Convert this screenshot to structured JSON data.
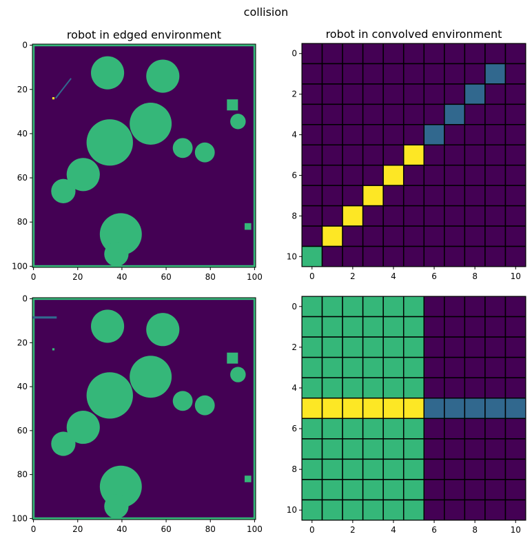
{
  "title": "collision",
  "colors": {
    "background": "#440154",
    "obstacle": "#35b779",
    "robot_path": "#31688e",
    "robot_point": "#fde725",
    "grid_line": "#000000"
  },
  "chart_data": [
    {
      "type": "heatmap",
      "title": "robot in edged environment",
      "xlim": [
        -0.5,
        100.5
      ],
      "ylim": [
        100.5,
        -0.5
      ],
      "xticks": [
        0,
        20,
        40,
        60,
        80,
        100
      ],
      "yticks": [
        0,
        20,
        40,
        60,
        80,
        100
      ],
      "background_value": "#440154",
      "obstacles": {
        "border_value": "#35b779",
        "circles": [
          {
            "cx": 33.5,
            "cy": 12.5,
            "r": 7.5
          },
          {
            "cx": 58.5,
            "cy": 14,
            "r": 7.5
          },
          {
            "cx": 53,
            "cy": 35.5,
            "r": 9.5
          },
          {
            "cx": 34.5,
            "cy": 44,
            "r": 10.5
          },
          {
            "cx": 22.5,
            "cy": 58.5,
            "r": 7.5
          },
          {
            "cx": 13.5,
            "cy": 66,
            "r": 5.5
          },
          {
            "cx": 67.5,
            "cy": 46.5,
            "r": 4.5
          },
          {
            "cx": 77.5,
            "cy": 48.5,
            "r": 4.5
          },
          {
            "cx": 92.5,
            "cy": 34.5,
            "r": 3.5
          },
          {
            "cx": 39.5,
            "cy": 85.5,
            "r": 9.5
          },
          {
            "cx": 37.5,
            "cy": 94.5,
            "r": 5.5
          }
        ],
        "rects": [
          {
            "x0": 88,
            "x1": 92,
            "y0": 25,
            "y1": 29
          },
          {
            "x0": 96,
            "x1": 98,
            "y0": 81,
            "y1": 83
          }
        ]
      },
      "robot": {
        "kind": "diagonal",
        "path": {
          "x0": 10,
          "y0": 24,
          "x1": 17,
          "y1": 15
        },
        "point": {
          "x": 9,
          "y": 24
        }
      }
    },
    {
      "type": "heatmap",
      "title": "robot in convolved environment",
      "xlim": [
        -0.5,
        10.5
      ],
      "ylim": [
        10.5,
        -0.5
      ],
      "xticks": [
        0,
        2,
        4,
        6,
        8,
        10
      ],
      "yticks": [
        0,
        2,
        4,
        6,
        8,
        10
      ],
      "rows": 11,
      "cols": 11,
      "legend_codes": {
        "0": "#440154",
        "1": "#31688e",
        "2": "#35b779",
        "3": "#fde725"
      },
      "z": [
        [
          0,
          0,
          0,
          0,
          0,
          0,
          0,
          0,
          0,
          0,
          0
        ],
        [
          0,
          0,
          0,
          0,
          0,
          0,
          0,
          0,
          0,
          1,
          0
        ],
        [
          0,
          0,
          0,
          0,
          0,
          0,
          0,
          0,
          1,
          0,
          0
        ],
        [
          0,
          0,
          0,
          0,
          0,
          0,
          0,
          1,
          0,
          0,
          0
        ],
        [
          0,
          0,
          0,
          0,
          0,
          0,
          1,
          0,
          0,
          0,
          0
        ],
        [
          0,
          0,
          0,
          0,
          0,
          3,
          0,
          0,
          0,
          0,
          0
        ],
        [
          0,
          0,
          0,
          0,
          3,
          0,
          0,
          0,
          0,
          0,
          0
        ],
        [
          0,
          0,
          0,
          3,
          0,
          0,
          0,
          0,
          0,
          0,
          0
        ],
        [
          0,
          0,
          3,
          0,
          0,
          0,
          0,
          0,
          0,
          0,
          0
        ],
        [
          0,
          3,
          0,
          0,
          0,
          0,
          0,
          0,
          0,
          0,
          0
        ],
        [
          2,
          0,
          0,
          0,
          0,
          0,
          0,
          0,
          0,
          0,
          0
        ]
      ]
    },
    {
      "type": "heatmap",
      "title": "",
      "xlim": [
        -0.5,
        100.5
      ],
      "ylim": [
        100.5,
        -0.5
      ],
      "xticks": [
        0,
        20,
        40,
        60,
        80,
        100
      ],
      "yticks": [
        0,
        20,
        40,
        60,
        80,
        100
      ],
      "background_value": "#440154",
      "obstacles": {
        "border_value": "#35b779",
        "circles": [
          {
            "cx": 33.5,
            "cy": 12.5,
            "r": 7.5
          },
          {
            "cx": 58.5,
            "cy": 14,
            "r": 7.5
          },
          {
            "cx": 53,
            "cy": 35.5,
            "r": 9.5
          },
          {
            "cx": 34.5,
            "cy": 44,
            "r": 10.5
          },
          {
            "cx": 22.5,
            "cy": 58.5,
            "r": 7.5
          },
          {
            "cx": 13.5,
            "cy": 66,
            "r": 5.5
          },
          {
            "cx": 67.5,
            "cy": 46.5,
            "r": 4.5
          },
          {
            "cx": 77.5,
            "cy": 48.5,
            "r": 4.5
          },
          {
            "cx": 92.5,
            "cy": 34.5,
            "r": 3.5
          },
          {
            "cx": 39.5,
            "cy": 85.5,
            "r": 9.5
          },
          {
            "cx": 37.5,
            "cy": 94.5,
            "r": 5.5
          }
        ],
        "rects": [
          {
            "x0": 88,
            "x1": 92,
            "y0": 25,
            "y1": 29
          },
          {
            "x0": 96,
            "x1": 98,
            "y0": 81,
            "y1": 83
          }
        ]
      },
      "robot": {
        "kind": "horizontal",
        "path": {
          "x0": 0,
          "y0": 8.5,
          "x1": 10,
          "y1": 8.5
        },
        "point": {
          "x": 9,
          "y": 23
        }
      }
    },
    {
      "type": "heatmap",
      "title": "",
      "xlim": [
        -0.5,
        10.5
      ],
      "ylim": [
        10.5,
        -0.5
      ],
      "xticks": [
        0,
        2,
        4,
        6,
        8,
        10
      ],
      "yticks": [
        0,
        2,
        4,
        6,
        8,
        10
      ],
      "rows": 11,
      "cols": 11,
      "legend_codes": {
        "0": "#440154",
        "1": "#31688e",
        "2": "#35b779",
        "3": "#fde725"
      },
      "z": [
        [
          2,
          2,
          2,
          2,
          2,
          2,
          0,
          0,
          0,
          0,
          0
        ],
        [
          2,
          2,
          2,
          2,
          2,
          2,
          0,
          0,
          0,
          0,
          0
        ],
        [
          2,
          2,
          2,
          2,
          2,
          2,
          0,
          0,
          0,
          0,
          0
        ],
        [
          2,
          2,
          2,
          2,
          2,
          2,
          0,
          0,
          0,
          0,
          0
        ],
        [
          2,
          2,
          2,
          2,
          2,
          2,
          0,
          0,
          0,
          0,
          0
        ],
        [
          3,
          3,
          3,
          3,
          3,
          3,
          1,
          1,
          1,
          1,
          1
        ],
        [
          2,
          2,
          2,
          2,
          2,
          2,
          0,
          0,
          0,
          0,
          0
        ],
        [
          2,
          2,
          2,
          2,
          2,
          2,
          0,
          0,
          0,
          0,
          0
        ],
        [
          2,
          2,
          2,
          2,
          2,
          2,
          0,
          0,
          0,
          0,
          0
        ],
        [
          2,
          2,
          2,
          2,
          2,
          2,
          0,
          0,
          0,
          0,
          0
        ],
        [
          2,
          2,
          2,
          2,
          2,
          2,
          0,
          0,
          0,
          0,
          0
        ]
      ]
    }
  ]
}
